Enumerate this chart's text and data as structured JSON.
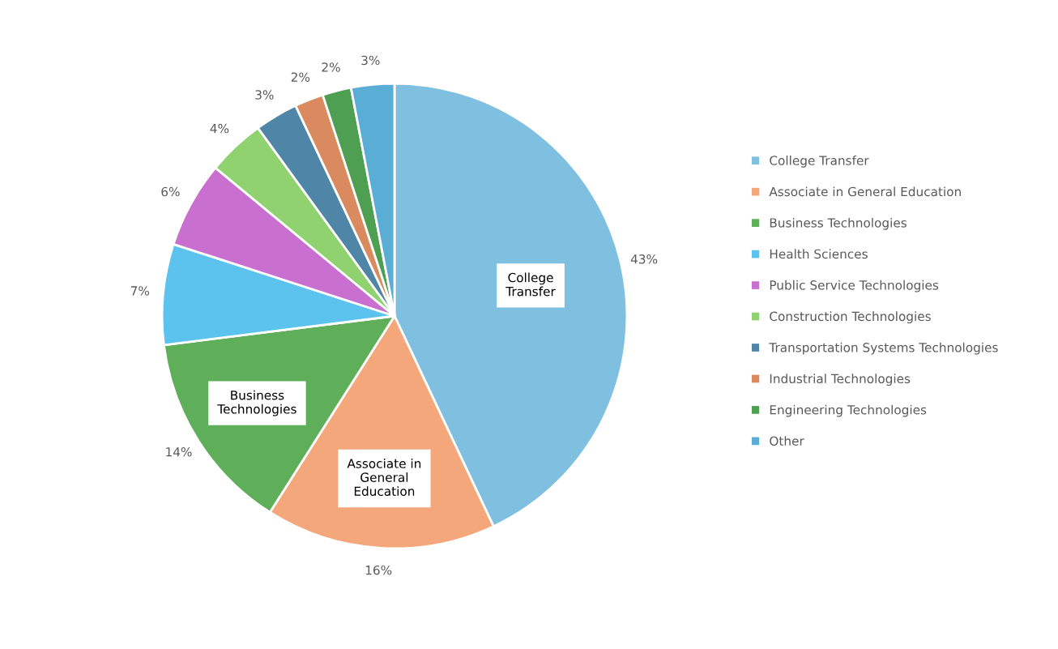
{
  "chart_data": {
    "type": "pie",
    "categories": [
      "College Transfer",
      "Associate in General Education",
      "Business Technologies",
      "Health Sciences",
      "Public Service Technologies",
      "Construction Technologies",
      "Transportation Systems Technologies",
      "Industrial Technologies",
      "Engineering Technologies",
      "Other"
    ],
    "values": [
      43,
      16,
      14,
      7,
      6,
      4,
      3,
      2,
      2,
      3
    ],
    "value_labels": [
      "43%",
      "16%",
      "14%",
      "7%",
      "6%",
      "4%",
      "3%",
      "2%",
      "2%",
      "3%"
    ],
    "colors": [
      "#7fbfdf",
      "#f4a77a",
      "#5fae5a",
      "#5cc3ee",
      "#c86fcf",
      "#8fd26f",
      "#4f86a8",
      "#d98a5e",
      "#4f9f52",
      "#5aaed6"
    ],
    "annotations": [
      {
        "text": "College\nTransfer",
        "x": "College Transfer"
      },
      {
        "text": "Associate in\nGeneral\nEducation",
        "x": "Associate in General Education"
      },
      {
        "text": "Business\nTechnologies",
        "x": "Business Technologies"
      }
    ],
    "legend": "right"
  }
}
